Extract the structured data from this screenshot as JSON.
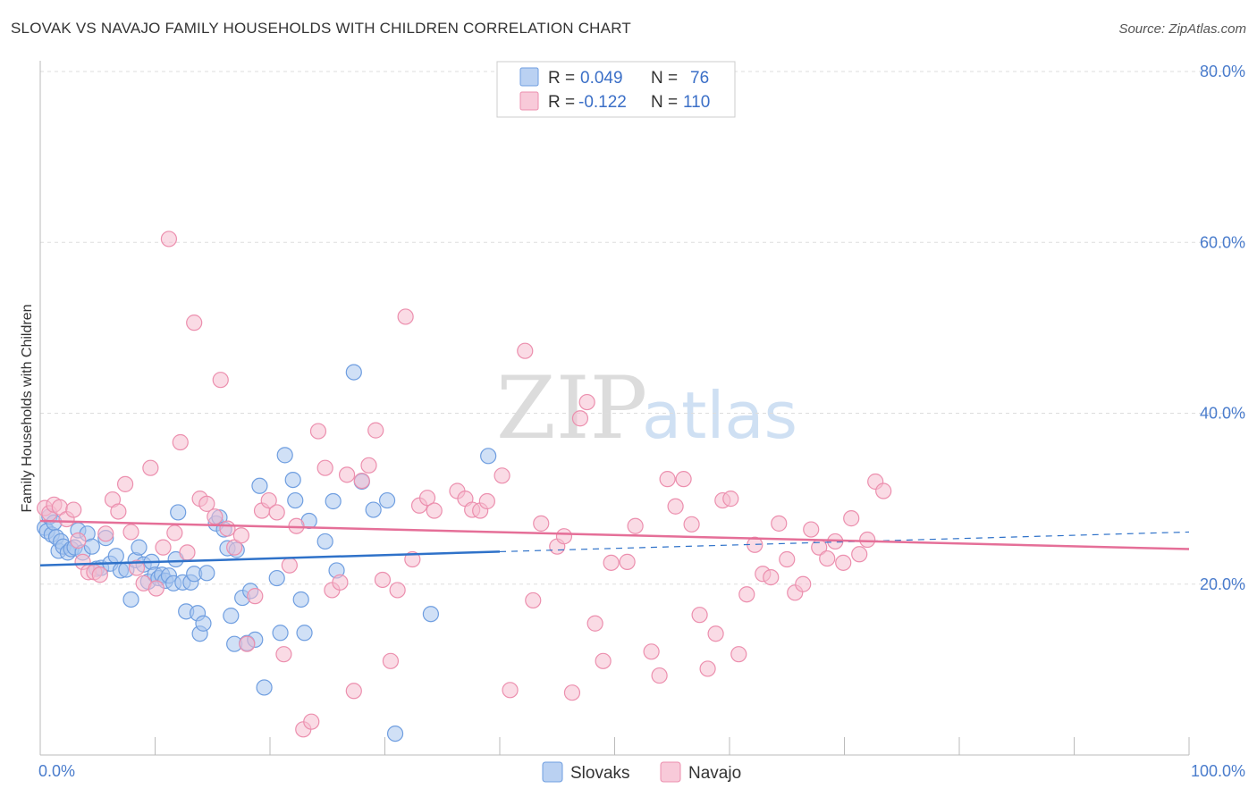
{
  "title": "SLOVAK VS NAVAJO FAMILY HOUSEHOLDS WITH CHILDREN CORRELATION CHART",
  "source": "Source: ZipAtlas.com",
  "watermark": {
    "zip": "ZIP",
    "atlas": "atlas"
  },
  "colors": {
    "slovaks_fill": "#a9c6ef",
    "slovaks_stroke": "#6f9ee0",
    "slovaks_line": "#2f72c9",
    "navajo_fill": "#f6bdd0",
    "navajo_stroke": "#ec8fae",
    "navajo_line": "#e56f98",
    "grid": "#dddddd",
    "tick_text": "#4a7ccc"
  },
  "legend": {
    "rows": [
      {
        "r_label": "R =",
        "r_value": "0.049",
        "n_label": "N =",
        "n_value": "76"
      },
      {
        "r_label": "R =",
        "r_value": "-0.122",
        "n_label": "N =",
        "n_value": "110"
      }
    ]
  },
  "chart_data": {
    "type": "scatter",
    "ylabel": "Family Households with Children",
    "xlim": [
      0,
      100
    ],
    "ylim": [
      0,
      80
    ],
    "y_ticks": [
      {
        "value": 20,
        "label": "20.0%"
      },
      {
        "value": 40,
        "label": "40.0%"
      },
      {
        "value": 60,
        "label": "60.0%"
      },
      {
        "value": 80,
        "label": "80.0%"
      }
    ],
    "x_ticks": [
      {
        "value": 0,
        "label": "0.0%"
      },
      {
        "value": 100,
        "label": "100.0%"
      }
    ],
    "grid": true,
    "legend_position": "top-center",
    "series": [
      {
        "name": "Slovaks",
        "r": 0.049,
        "n": 76,
        "trend": {
          "x_start": 0,
          "y_start": 22.2,
          "x_solid_end": 40,
          "y_solid_end": 23.8,
          "x_end": 100,
          "y_end": 26.1
        },
        "points": [
          [
            0.4,
            26.6
          ],
          [
            0.6,
            26.2
          ],
          [
            0.8,
            27.9
          ],
          [
            1.0,
            25.8
          ],
          [
            1.2,
            27.2
          ],
          [
            1.4,
            25.5
          ],
          [
            1.6,
            23.9
          ],
          [
            1.8,
            25.0
          ],
          [
            2.0,
            24.4
          ],
          [
            2.4,
            23.7
          ],
          [
            2.7,
            24.1
          ],
          [
            3.0,
            24.3
          ],
          [
            3.3,
            26.3
          ],
          [
            3.7,
            23.7
          ],
          [
            4.1,
            25.9
          ],
          [
            4.5,
            24.4
          ],
          [
            4.9,
            21.8
          ],
          [
            5.3,
            21.9
          ],
          [
            5.7,
            25.4
          ],
          [
            6.1,
            22.4
          ],
          [
            6.6,
            23.3
          ],
          [
            7.0,
            21.6
          ],
          [
            7.5,
            21.7
          ],
          [
            7.9,
            18.2
          ],
          [
            8.3,
            22.8
          ],
          [
            8.6,
            24.3
          ],
          [
            9.0,
            22.3
          ],
          [
            9.4,
            20.3
          ],
          [
            9.7,
            22.6
          ],
          [
            10.0,
            21.1
          ],
          [
            10.3,
            20.7
          ],
          [
            10.6,
            21.1
          ],
          [
            10.9,
            20.4
          ],
          [
            11.2,
            21.0
          ],
          [
            11.6,
            20.1
          ],
          [
            11.8,
            22.9
          ],
          [
            12.0,
            28.4
          ],
          [
            12.4,
            20.2
          ],
          [
            12.7,
            16.8
          ],
          [
            13.1,
            20.2
          ],
          [
            13.4,
            21.2
          ],
          [
            13.7,
            16.6
          ],
          [
            13.9,
            14.2
          ],
          [
            14.2,
            15.4
          ],
          [
            14.5,
            21.3
          ],
          [
            15.3,
            27.1
          ],
          [
            15.6,
            27.8
          ],
          [
            16.0,
            26.4
          ],
          [
            16.3,
            24.2
          ],
          [
            16.6,
            16.3
          ],
          [
            16.9,
            13.0
          ],
          [
            17.1,
            24.0
          ],
          [
            17.6,
            18.4
          ],
          [
            18.0,
            13.1
          ],
          [
            18.3,
            19.2
          ],
          [
            18.7,
            13.5
          ],
          [
            19.1,
            31.5
          ],
          [
            19.5,
            7.9
          ],
          [
            20.6,
            20.7
          ],
          [
            20.9,
            14.3
          ],
          [
            21.3,
            35.1
          ],
          [
            22.0,
            32.2
          ],
          [
            22.2,
            29.8
          ],
          [
            22.7,
            18.2
          ],
          [
            23.0,
            14.3
          ],
          [
            23.4,
            27.4
          ],
          [
            24.8,
            25.0
          ],
          [
            25.5,
            29.7
          ],
          [
            25.8,
            21.6
          ],
          [
            27.3,
            44.8
          ],
          [
            28.0,
            32.0
          ],
          [
            29.0,
            28.7
          ],
          [
            30.2,
            29.8
          ],
          [
            30.9,
            2.5
          ],
          [
            34.0,
            16.5
          ],
          [
            39.0,
            35.0
          ]
        ]
      },
      {
        "name": "Navajo",
        "r": -0.122,
        "n": 110,
        "trend": {
          "x_start": 0,
          "y_start": 27.4,
          "x_end": 100,
          "y_end": 24.1
        },
        "points": [
          [
            0.4,
            28.9
          ],
          [
            0.8,
            28.3
          ],
          [
            1.2,
            29.3
          ],
          [
            1.7,
            29.0
          ],
          [
            2.3,
            27.6
          ],
          [
            2.9,
            28.7
          ],
          [
            3.3,
            25.1
          ],
          [
            3.7,
            22.6
          ],
          [
            4.2,
            21.4
          ],
          [
            4.7,
            21.4
          ],
          [
            5.2,
            21.1
          ],
          [
            5.7,
            25.9
          ],
          [
            6.3,
            29.9
          ],
          [
            6.8,
            28.5
          ],
          [
            7.4,
            31.7
          ],
          [
            7.9,
            26.1
          ],
          [
            8.4,
            21.9
          ],
          [
            9.0,
            20.1
          ],
          [
            9.6,
            33.6
          ],
          [
            10.1,
            19.5
          ],
          [
            10.7,
            24.3
          ],
          [
            11.2,
            60.4
          ],
          [
            11.7,
            26.0
          ],
          [
            12.2,
            36.6
          ],
          [
            12.8,
            23.7
          ],
          [
            13.4,
            50.6
          ],
          [
            13.9,
            30.0
          ],
          [
            14.5,
            29.4
          ],
          [
            15.2,
            27.9
          ],
          [
            15.7,
            43.9
          ],
          [
            16.3,
            26.5
          ],
          [
            16.9,
            24.3
          ],
          [
            17.5,
            25.7
          ],
          [
            18.0,
            13.0
          ],
          [
            18.7,
            18.6
          ],
          [
            19.3,
            28.6
          ],
          [
            19.9,
            29.8
          ],
          [
            20.6,
            28.4
          ],
          [
            21.2,
            11.8
          ],
          [
            21.7,
            22.2
          ],
          [
            22.3,
            26.8
          ],
          [
            22.9,
            3.0
          ],
          [
            23.6,
            3.9
          ],
          [
            24.2,
            37.9
          ],
          [
            24.8,
            33.6
          ],
          [
            25.4,
            19.3
          ],
          [
            26.1,
            20.2
          ],
          [
            26.7,
            32.8
          ],
          [
            27.3,
            7.5
          ],
          [
            28.0,
            32.1
          ],
          [
            28.6,
            33.9
          ],
          [
            29.2,
            38.0
          ],
          [
            29.8,
            20.5
          ],
          [
            30.5,
            11.0
          ],
          [
            31.1,
            19.3
          ],
          [
            31.8,
            51.3
          ],
          [
            32.4,
            22.9
          ],
          [
            33.0,
            29.2
          ],
          [
            33.7,
            30.1
          ],
          [
            34.3,
            28.6
          ],
          [
            36.3,
            30.9
          ],
          [
            37.0,
            30.0
          ],
          [
            37.6,
            28.7
          ],
          [
            38.3,
            28.6
          ],
          [
            38.9,
            29.7
          ],
          [
            40.2,
            32.7
          ],
          [
            40.9,
            7.6
          ],
          [
            42.2,
            47.3
          ],
          [
            42.9,
            18.1
          ],
          [
            43.6,
            27.1
          ],
          [
            45.0,
            24.4
          ],
          [
            45.6,
            25.6
          ],
          [
            46.3,
            7.3
          ],
          [
            47.0,
            39.4
          ],
          [
            47.6,
            41.3
          ],
          [
            48.3,
            15.4
          ],
          [
            49.0,
            11.0
          ],
          [
            49.7,
            22.5
          ],
          [
            51.1,
            22.6
          ],
          [
            51.8,
            26.8
          ],
          [
            53.2,
            12.1
          ],
          [
            53.9,
            9.3
          ],
          [
            54.6,
            32.3
          ],
          [
            55.3,
            29.1
          ],
          [
            56.0,
            32.3
          ],
          [
            56.7,
            27.0
          ],
          [
            57.4,
            16.4
          ],
          [
            58.1,
            10.1
          ],
          [
            58.8,
            14.2
          ],
          [
            59.4,
            29.8
          ],
          [
            60.1,
            30.0
          ],
          [
            60.8,
            11.8
          ],
          [
            61.5,
            18.8
          ],
          [
            62.2,
            24.6
          ],
          [
            62.9,
            21.2
          ],
          [
            63.6,
            20.8
          ],
          [
            64.3,
            27.1
          ],
          [
            65.0,
            22.9
          ],
          [
            65.7,
            19.0
          ],
          [
            66.4,
            20.0
          ],
          [
            67.1,
            26.4
          ],
          [
            67.8,
            24.3
          ],
          [
            68.5,
            23.0
          ],
          [
            69.2,
            25.0
          ],
          [
            69.9,
            22.5
          ],
          [
            70.6,
            27.7
          ],
          [
            71.3,
            23.5
          ],
          [
            72.0,
            25.2
          ],
          [
            72.7,
            32.0
          ],
          [
            73.4,
            30.9
          ]
        ]
      }
    ]
  }
}
